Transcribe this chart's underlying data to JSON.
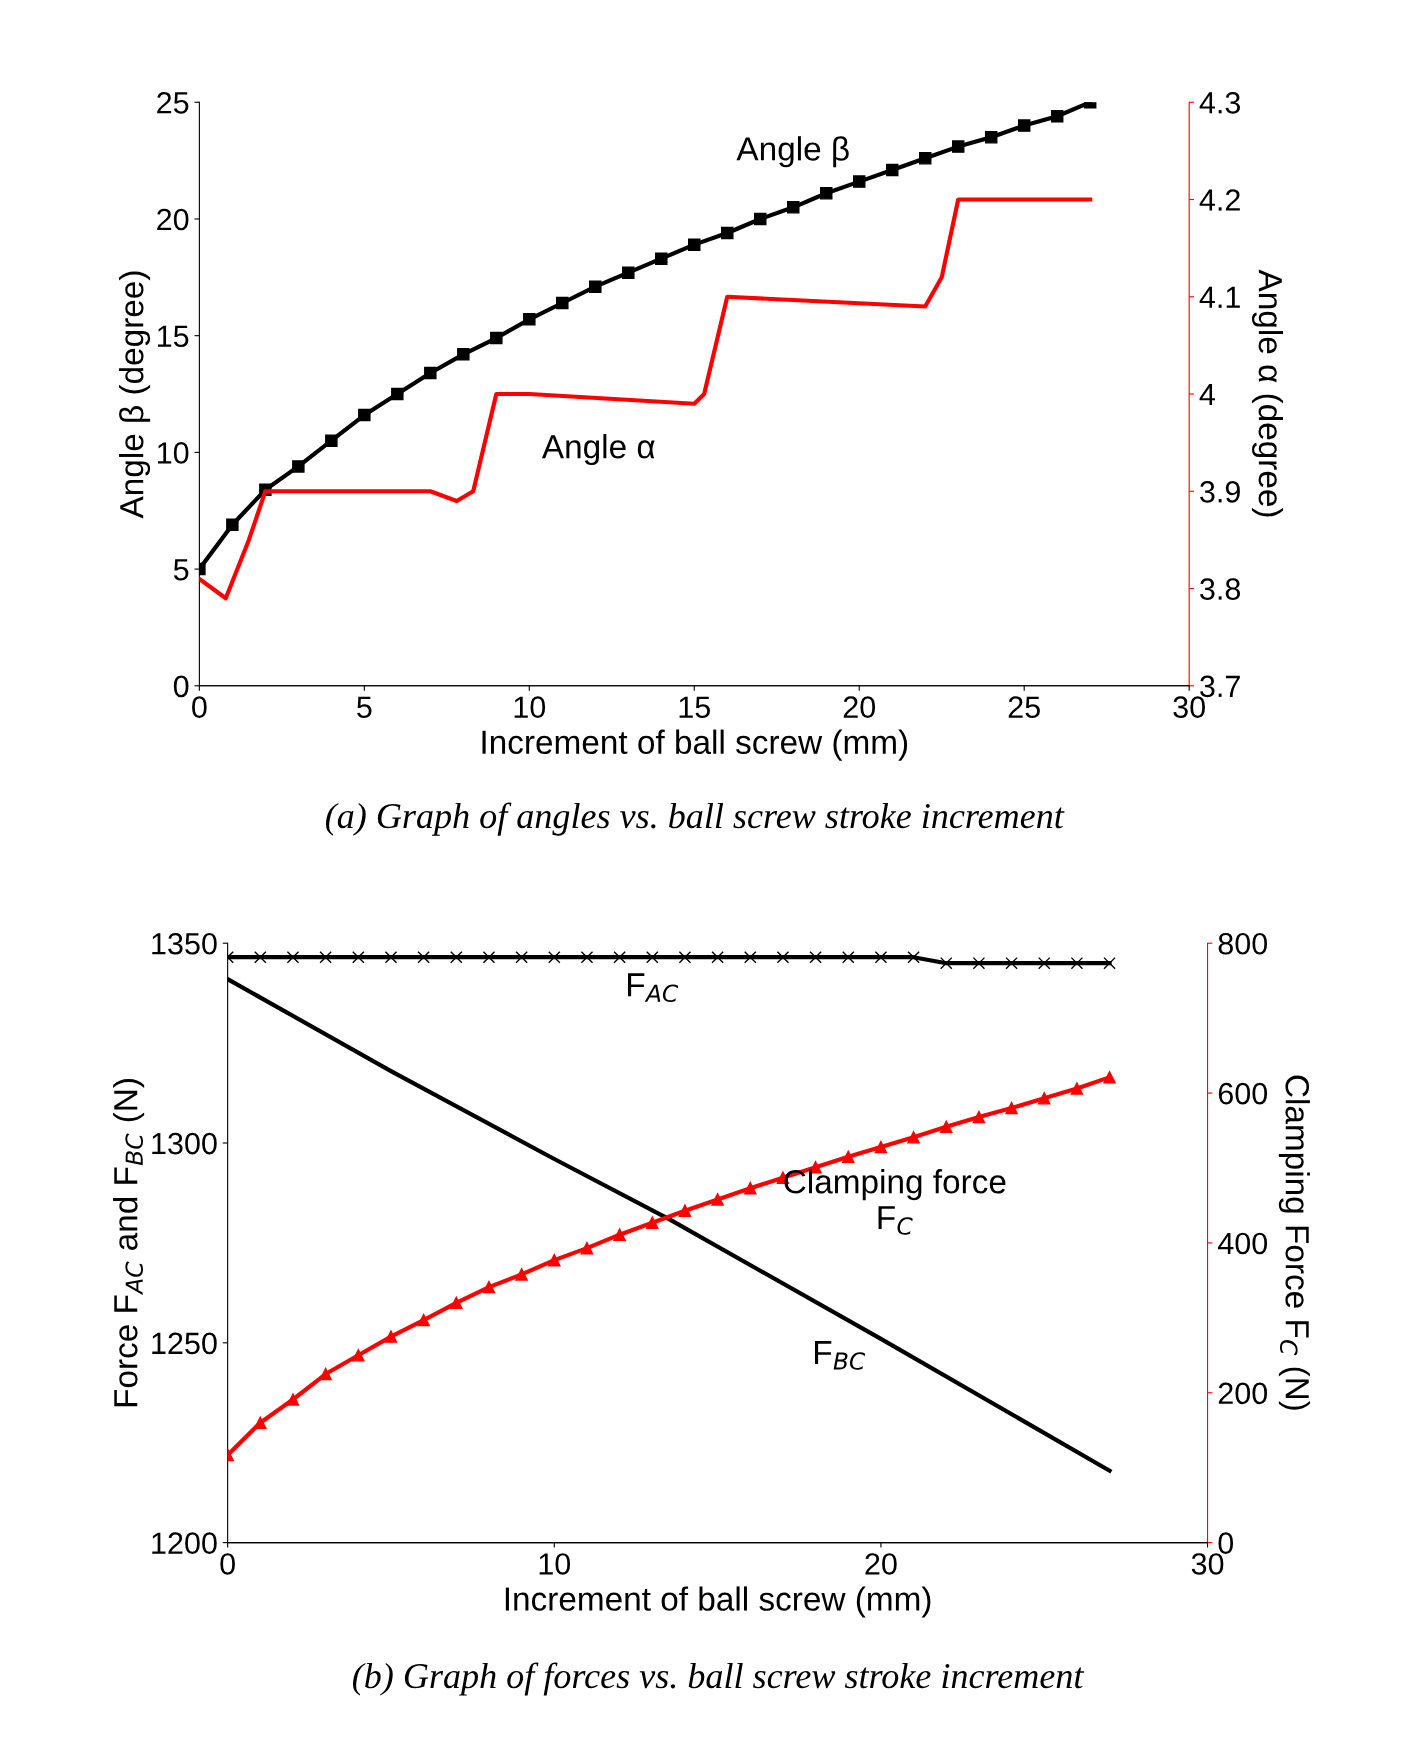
{
  "chart_data": [
    {
      "type": "line",
      "xlabel": "Increment of ball screw (mm)",
      "ylabel": "Angle β (degree)",
      "y2label": "Angle α (degree)",
      "xlim": [
        0,
        30
      ],
      "xticks": [
        0,
        5,
        10,
        15,
        20,
        25,
        30
      ],
      "ylim": [
        0,
        25
      ],
      "yticks": [
        0,
        5,
        10,
        15,
        20,
        25
      ],
      "y2lim": [
        3.7,
        4.3
      ],
      "y2ticks": [
        3.7,
        3.8,
        3.9,
        {
          "value": 4.0,
          "label": "4"
        },
        4.1,
        4.2,
        4.3
      ],
      "grid": false,
      "legend": false,
      "series": [
        {
          "name": "Angle β",
          "color": "#000000",
          "marker": "square",
          "line_style": "solid",
          "x": [
            0,
            1,
            2,
            3,
            4,
            5,
            6,
            7,
            8,
            9,
            10,
            11,
            12,
            13,
            14,
            15,
            16,
            17,
            18,
            19,
            20,
            21,
            22,
            23,
            24,
            25,
            26,
            27
          ],
          "values": [
            5.0,
            6.9,
            8.4,
            9.4,
            10.5,
            11.6,
            12.5,
            13.4,
            14.2,
            14.9,
            15.7,
            16.4,
            17.1,
            17.7,
            18.3,
            18.9,
            19.4,
            20.0,
            20.5,
            21.1,
            21.6,
            22.1,
            22.6,
            23.1,
            23.5,
            24.0,
            24.4,
            25.0
          ]
        },
        {
          "name": "Angle α",
          "color": "#ff0000",
          "marker": "none",
          "line_style": "solid",
          "axis": "y2",
          "x": [
            0,
            0.8,
            1.5,
            2,
            2.5,
            7,
            7.8,
            8.3,
            9,
            10,
            15,
            15.3,
            16,
            22,
            22.5,
            23,
            27
          ],
          "values": [
            3.81,
            3.79,
            3.85,
            3.9,
            3.9,
            3.9,
            3.89,
            3.9,
            4.0,
            4.0,
            3.99,
            4.0,
            4.1,
            4.09,
            4.12,
            4.2,
            4.2
          ]
        }
      ],
      "annotations": [
        "(a) Graph of angles vs. ball screw stroke increment"
      ]
    },
    {
      "type": "line",
      "xlabel": "Increment of ball screw (mm)",
      "ylabel": "Force F$_{AC}$ and F$_{BC}$ (N)",
      "y2label": "Clamping Force F$_{C}$ (N)",
      "xlim": [
        0,
        30
      ],
      "xticks": [
        0,
        10,
        20,
        30
      ],
      "ylim": [
        1200,
        1350
      ],
      "yticks": [
        1200,
        1250,
        1300,
        1350
      ],
      "y2lim": [
        0,
        800
      ],
      "y2ticks": [
        0,
        200,
        400,
        600,
        800
      ],
      "grid": false,
      "legend": false,
      "series": [
        {
          "name": "F$_{AC}$",
          "color": "#000000",
          "marker": "cross",
          "line_style": "solid",
          "x": [
            0,
            1,
            2,
            3,
            4,
            5,
            6,
            7,
            8,
            9,
            10,
            11,
            12,
            13,
            14,
            15,
            16,
            17,
            18,
            19,
            20,
            21,
            22,
            23,
            24,
            25,
            26,
            27
          ],
          "values": [
            1346.5,
            1346.5,
            1346.5,
            1346.5,
            1346.5,
            1346.5,
            1346.5,
            1346.5,
            1346.5,
            1346.5,
            1346.5,
            1346.5,
            1346.5,
            1346.5,
            1346.5,
            1346.5,
            1346.5,
            1346.5,
            1346.5,
            1346.5,
            1346.5,
            1346.5,
            1345,
            1345,
            1345,
            1345,
            1345,
            1345
          ]
        },
        {
          "name": "F$_{BC}$",
          "color": "#000000",
          "marker": "none",
          "line_style": "solid",
          "x": [
            0,
            5,
            10,
            13.5,
            20,
            27
          ],
          "values": [
            1341,
            1318,
            1296,
            1281,
            1251,
            1218
          ]
        },
        {
          "name": "Clamping force\nF$_{C}$",
          "color": "#ff0000",
          "marker": "triangle",
          "line_style": "solid",
          "axis": "y2",
          "x": [
            0,
            1,
            2,
            3,
            4,
            5,
            6,
            7,
            8,
            9,
            10,
            11,
            12,
            13,
            14,
            15,
            16,
            17,
            18,
            19,
            20,
            21,
            22,
            23,
            24,
            25,
            26,
            27
          ],
          "values": [
            117,
            160,
            191,
            225,
            250,
            275,
            297,
            320,
            341,
            358,
            377,
            393,
            411,
            427,
            443,
            458,
            473,
            487,
            501,
            515,
            528,
            541,
            555,
            568,
            580,
            593,
            606,
            621
          ]
        }
      ],
      "annotations": [
        "(b) Graph of forces vs. ball screw stroke increment"
      ]
    }
  ]
}
